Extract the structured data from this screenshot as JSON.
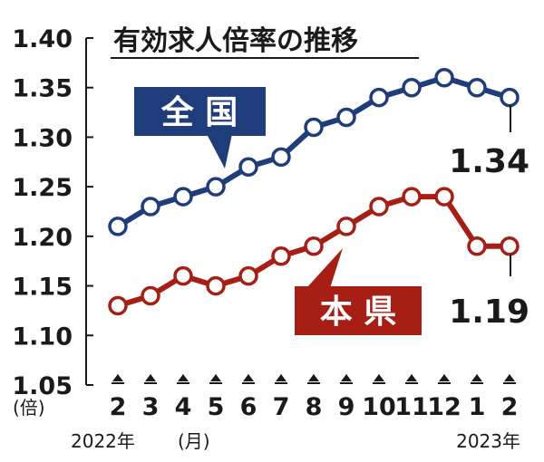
{
  "chart_data": {
    "type": "line",
    "title": "有効求人倍率の推移",
    "y_unit": "(倍)",
    "ylim": [
      1.05,
      1.4
    ],
    "yticks": [
      "1.40",
      "1.35",
      "1.30",
      "1.25",
      "1.20",
      "1.15",
      "1.10",
      "1.05"
    ],
    "categories": [
      "2",
      "3",
      "4",
      "5",
      "6",
      "7",
      "8",
      "9",
      "10",
      "11",
      "12",
      "1",
      "2"
    ],
    "x_year_start": "2022年",
    "x_unit": "(月)",
    "x_year_end": "2023年",
    "grid": false,
    "series": [
      {
        "name": "全 国",
        "color": "#1f3d7a",
        "values": [
          1.21,
          1.23,
          1.24,
          1.25,
          1.27,
          1.28,
          1.31,
          1.32,
          1.34,
          1.35,
          1.36,
          1.35,
          1.34
        ],
        "end_label": "1.34"
      },
      {
        "name": "本 県",
        "color": "#a61e14",
        "values": [
          1.13,
          1.14,
          1.16,
          1.15,
          1.16,
          1.18,
          1.19,
          1.21,
          1.23,
          1.24,
          1.24,
          1.19,
          1.19
        ],
        "end_label": "1.19"
      }
    ]
  }
}
